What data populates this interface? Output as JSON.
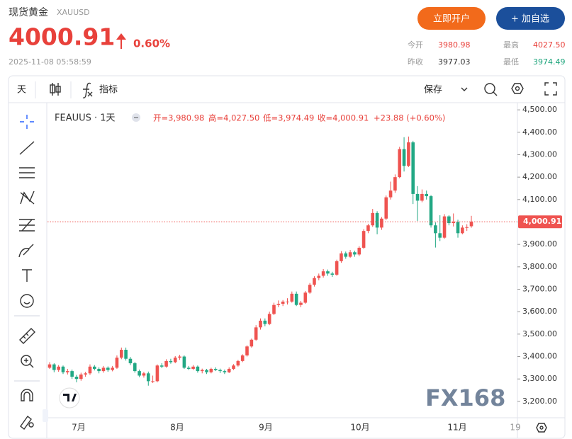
{
  "header": {
    "title": "现货黄金",
    "symbol": "XAUUSD",
    "price": "4000.91",
    "change": "0.60%",
    "time": "2025-11-08 05:58:59",
    "buttons": [
      "立即开户",
      "+ 加自选"
    ],
    "stats": [
      {
        "label": "今开",
        "value": "3980.98"
      },
      {
        "label": "最高",
        "value": "4027.50"
      },
      {
        "label": "昨收",
        "value": "3977.03"
      },
      {
        "label": "最低",
        "value": "3974.49"
      }
    ]
  },
  "toolbar": {
    "interval": "天",
    "indicators": "指标",
    "save": "保存"
  },
  "legend": {
    "symbol": "FEAUUS · 1天",
    "open": "开=3,980.98",
    "high": "高=4,027.50",
    "low": "低=3,974.49",
    "close": "收=4,000.91",
    "change": "+23.88 (+0.60%)"
  },
  "watermark": "FX168",
  "chart": {
    "type": "candlestick",
    "up_color": "#ef5350",
    "down_color": "#22a884",
    "x_labels": [
      "7月",
      "8月",
      "9月",
      "10月",
      "11月",
      "19"
    ],
    "ylim": [
      3127,
      4532
    ],
    "yticks": [
      {
        "value": 4500,
        "label": "4,500.00"
      },
      {
        "value": 4400,
        "label": "4,400.00"
      },
      {
        "value": 4300,
        "label": "4,300.00"
      },
      {
        "value": 4200,
        "label": "4,200.00"
      },
      {
        "value": 4100,
        "label": "4,100.00"
      },
      {
        "value": 4000,
        "label": "4,000.00"
      },
      {
        "value": 3900,
        "label": "3,900.00"
      },
      {
        "value": 3800,
        "label": "3,800.00"
      },
      {
        "value": 3700,
        "label": "3,700.00"
      },
      {
        "value": 3600,
        "label": "3,600.00"
      },
      {
        "value": 3500,
        "label": "3,500.00"
      },
      {
        "value": 3400,
        "label": "3,400.00"
      },
      {
        "value": 3300,
        "label": "3,300.00"
      },
      {
        "value": 3200,
        "label": "3,200.00"
      }
    ],
    "last_label": "4,000.91",
    "candles": [
      [
        3350,
        3375,
        3345,
        3365
      ],
      [
        3365,
        3370,
        3330,
        3340
      ],
      [
        3340,
        3362,
        3332,
        3355
      ],
      [
        3355,
        3360,
        3322,
        3330
      ],
      [
        3330,
        3345,
        3320,
        3335
      ],
      [
        3335,
        3342,
        3300,
        3310
      ],
      [
        3310,
        3318,
        3285,
        3300
      ],
      [
        3300,
        3328,
        3292,
        3320
      ],
      [
        3320,
        3332,
        3310,
        3325
      ],
      [
        3325,
        3365,
        3318,
        3355
      ],
      [
        3355,
        3362,
        3338,
        3345
      ],
      [
        3345,
        3352,
        3325,
        3335
      ],
      [
        3335,
        3358,
        3328,
        3350
      ],
      [
        3350,
        3356,
        3332,
        3340
      ],
      [
        3340,
        3358,
        3334,
        3350
      ],
      [
        3350,
        3405,
        3345,
        3395
      ],
      [
        3395,
        3440,
        3388,
        3430
      ],
      [
        3430,
        3440,
        3382,
        3390
      ],
      [
        3390,
        3398,
        3362,
        3370
      ],
      [
        3370,
        3376,
        3328,
        3335
      ],
      [
        3335,
        3342,
        3308,
        3315
      ],
      [
        3315,
        3332,
        3306,
        3325
      ],
      [
        3325,
        3333,
        3270,
        3290
      ],
      [
        3290,
        3315,
        3282,
        3290
      ],
      [
        3290,
        3365,
        3285,
        3360
      ],
      [
        3360,
        3370,
        3348,
        3355
      ],
      [
        3355,
        3388,
        3350,
        3380
      ],
      [
        3380,
        3390,
        3368,
        3375
      ],
      [
        3375,
        3402,
        3370,
        3395
      ],
      [
        3395,
        3408,
        3385,
        3400
      ],
      [
        3400,
        3405,
        3345,
        3350
      ],
      [
        3350,
        3358,
        3340,
        3345
      ],
      [
        3345,
        3362,
        3340,
        3355
      ],
      [
        3355,
        3360,
        3328,
        3335
      ],
      [
        3335,
        3346,
        3325,
        3340
      ],
      [
        3340,
        3345,
        3322,
        3330
      ],
      [
        3330,
        3350,
        3325,
        3345
      ],
      [
        3345,
        3352,
        3335,
        3340
      ],
      [
        3340,
        3346,
        3326,
        3335
      ],
      [
        3335,
        3342,
        3322,
        3330
      ],
      [
        3330,
        3352,
        3326,
        3345
      ],
      [
        3345,
        3366,
        3340,
        3360
      ],
      [
        3360,
        3385,
        3355,
        3380
      ],
      [
        3380,
        3410,
        3375,
        3405
      ],
      [
        3405,
        3450,
        3400,
        3445
      ],
      [
        3445,
        3480,
        3440,
        3475
      ],
      [
        3475,
        3540,
        3470,
        3530
      ],
      [
        3530,
        3570,
        3520,
        3560
      ],
      [
        3560,
        3570,
        3535,
        3545
      ],
      [
        3545,
        3600,
        3540,
        3590
      ],
      [
        3590,
        3640,
        3585,
        3630
      ],
      [
        3630,
        3650,
        3620,
        3635
      ],
      [
        3635,
        3652,
        3625,
        3645
      ],
      [
        3645,
        3660,
        3632,
        3645
      ],
      [
        3645,
        3690,
        3640,
        3680
      ],
      [
        3680,
        3690,
        3625,
        3630
      ],
      [
        3630,
        3648,
        3620,
        3640
      ],
      [
        3640,
        3692,
        3635,
        3685
      ],
      [
        3685,
        3728,
        3680,
        3720
      ],
      [
        3720,
        3758,
        3712,
        3750
      ],
      [
        3750,
        3770,
        3740,
        3760
      ],
      [
        3760,
        3790,
        3752,
        3780
      ],
      [
        3780,
        3788,
        3760,
        3770
      ],
      [
        3770,
        3778,
        3755,
        3765
      ],
      [
        3765,
        3832,
        3760,
        3825
      ],
      [
        3825,
        3870,
        3818,
        3860
      ],
      [
        3860,
        3868,
        3836,
        3845
      ],
      [
        3845,
        3875,
        3840,
        3865
      ],
      [
        3865,
        3872,
        3845,
        3855
      ],
      [
        3855,
        3892,
        3848,
        3885
      ],
      [
        3885,
        3968,
        3880,
        3960
      ],
      [
        3960,
        3992,
        3950,
        3985
      ],
      [
        3985,
        4058,
        3978,
        4040
      ],
      [
        4040,
        4048,
        3945,
        3975
      ],
      [
        3975,
        4022,
        3965,
        4015
      ],
      [
        4015,
        4118,
        4008,
        4110
      ],
      [
        4110,
        4180,
        4100,
        4140
      ],
      [
        4140,
        4212,
        4130,
        4200
      ],
      [
        4200,
        4335,
        4195,
        4325
      ],
      [
        4325,
        4378,
        4225,
        4250
      ],
      [
        4250,
        4381,
        4245,
        4355
      ],
      [
        4355,
        4362,
        4080,
        4125
      ],
      [
        4125,
        4160,
        4005,
        4095
      ],
      [
        4095,
        4145,
        4088,
        4125
      ],
      [
        4125,
        4140,
        4100,
        4115
      ],
      [
        4115,
        4120,
        3975,
        3985
      ],
      [
        3985,
        3998,
        3886,
        3950
      ],
      [
        3950,
        4030,
        3915,
        3930
      ],
      [
        3930,
        4035,
        3925,
        4025
      ],
      [
        4025,
        4030,
        3985,
        3995
      ],
      [
        3995,
        4038,
        3980,
        4000
      ],
      [
        4000,
        4010,
        3930,
        3950
      ],
      [
        3950,
        3985,
        3945,
        3975
      ],
      [
        3975,
        3990,
        3960,
        3977.03
      ],
      [
        3980.98,
        4027.5,
        3974.49,
        4000.91
      ]
    ]
  }
}
